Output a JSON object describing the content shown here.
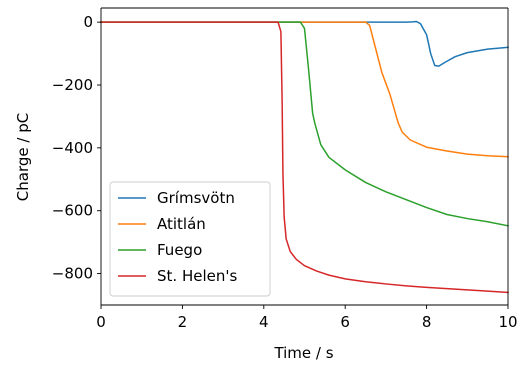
{
  "chart_data": {
    "type": "line",
    "title": "",
    "xlabel": "Time / s",
    "ylabel": "Charge / pC",
    "xlim": [
      0,
      10
    ],
    "ylim": [
      -900,
      45
    ],
    "xticks": [
      0,
      2,
      4,
      6,
      8,
      10
    ],
    "xtick_labels": [
      "0",
      "2",
      "4",
      "6",
      "8",
      "10"
    ],
    "yticks": [
      0,
      -200,
      -400,
      -600,
      -800
    ],
    "ytick_labels": [
      "0",
      "−200",
      "−400",
      "−600",
      "−800"
    ],
    "grid": false,
    "legend_position": "lower-left",
    "series": [
      {
        "name": "Grímsvötn",
        "color": "#1f77b4",
        "x": [
          0,
          2,
          4,
          6,
          7.5,
          7.65,
          7.75,
          7.85,
          8.0,
          8.1,
          8.2,
          8.3,
          8.45,
          8.7,
          9.0,
          9.5,
          10
        ],
        "y": [
          0,
          0,
          0,
          0,
          0,
          1,
          2,
          -5,
          -40,
          -100,
          -138,
          -140,
          -128,
          -110,
          -97,
          -86,
          -80
        ]
      },
      {
        "name": "Atitlán",
        "color": "#ff7f0e",
        "x": [
          0,
          2,
          4,
          6,
          6.5,
          6.6,
          6.7,
          6.9,
          7.1,
          7.3,
          7.4,
          7.6,
          8.0,
          8.5,
          9.0,
          9.5,
          10
        ],
        "y": [
          0,
          0,
          0,
          0,
          0,
          -10,
          -60,
          -160,
          -230,
          -320,
          -350,
          -375,
          -398,
          -410,
          -420,
          -425,
          -428
        ]
      },
      {
        "name": "Fuego",
        "color": "#2ca02c",
        "x": [
          0,
          2,
          4,
          4.9,
          5.0,
          5.1,
          5.2,
          5.25,
          5.4,
          5.6,
          6.0,
          6.5,
          7.0,
          7.5,
          8.0,
          8.5,
          9.0,
          9.5,
          10
        ],
        "y": [
          0,
          0,
          0,
          0,
          -20,
          -150,
          -290,
          -320,
          -390,
          -430,
          -470,
          -510,
          -540,
          -565,
          -590,
          -612,
          -625,
          -635,
          -648
        ]
      },
      {
        "name": "St. Helen's",
        "color": "#d62728",
        "x": [
          0,
          2,
          4,
          4.35,
          4.42,
          4.45,
          4.47,
          4.5,
          4.55,
          4.65,
          4.8,
          5.0,
          5.3,
          5.6,
          6.0,
          6.5,
          7.0,
          7.5,
          8.0,
          8.5,
          9.0,
          9.5,
          10
        ],
        "y": [
          0,
          0,
          0,
          0,
          -30,
          -250,
          -480,
          -620,
          -690,
          -730,
          -755,
          -775,
          -792,
          -805,
          -817,
          -826,
          -833,
          -839,
          -844,
          -848,
          -852,
          -856,
          -860
        ]
      }
    ]
  }
}
